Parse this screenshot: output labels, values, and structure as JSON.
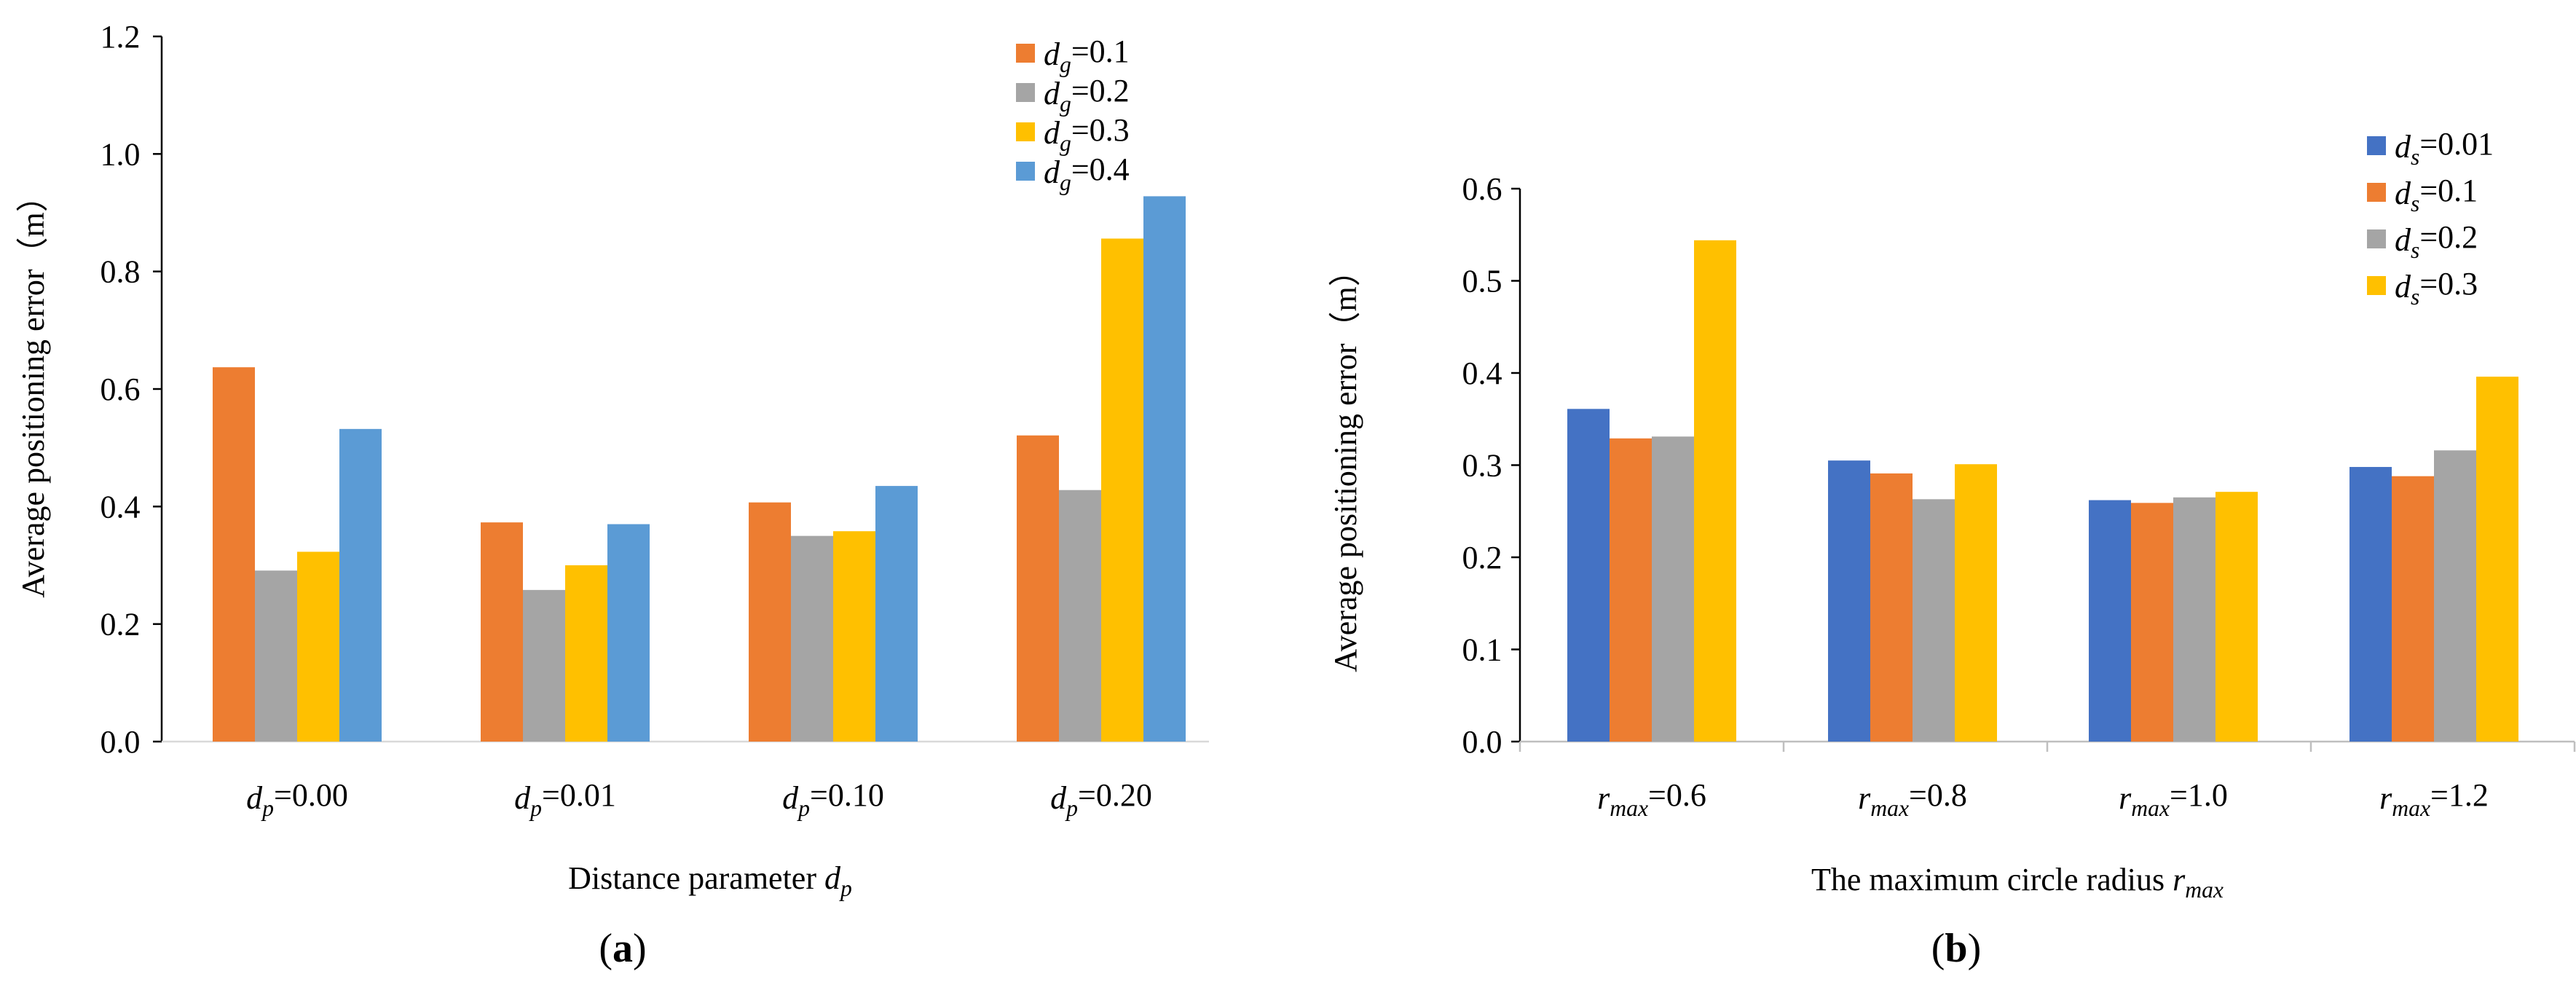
{
  "chart_data": [
    {
      "type": "bar",
      "panel_label": "(a)",
      "ylabel": "Average positioning error（m）",
      "xlabel": {
        "text": "Distance parameter ",
        "var": "d",
        "sub": "p"
      },
      "ylim": [
        0,
        1.2
      ],
      "yticks": [
        "0.0",
        "0.2",
        "0.4",
        "0.6",
        "0.8",
        "1.0",
        "1.2"
      ],
      "grid": false,
      "legend_position": "top-right",
      "categories": [
        {
          "var": "d",
          "sub": "p",
          "val": "=0.00"
        },
        {
          "var": "d",
          "sub": "p",
          "val": "=0.01"
        },
        {
          "var": "d",
          "sub": "p",
          "val": "=0.10"
        },
        {
          "var": "d",
          "sub": "p",
          "val": "=0.20"
        }
      ],
      "series": [
        {
          "name": {
            "var": "d",
            "sub": "g",
            "val": "=0.1"
          },
          "color": "#ED7D31",
          "values": [
            0.637,
            0.373,
            0.407,
            0.521
          ]
        },
        {
          "name": {
            "var": "d",
            "sub": "g",
            "val": "=0.2"
          },
          "color": "#A5A5A5",
          "values": [
            0.291,
            0.258,
            0.35,
            0.428
          ]
        },
        {
          "name": {
            "var": "d",
            "sub": "g",
            "val": "=0.3"
          },
          "color": "#FFC000",
          "values": [
            0.323,
            0.3,
            0.358,
            0.856
          ]
        },
        {
          "name": {
            "var": "d",
            "sub": "g",
            "val": "=0.4"
          },
          "color": "#5B9BD5",
          "values": [
            0.532,
            0.37,
            0.435,
            0.928
          ]
        }
      ]
    },
    {
      "type": "bar",
      "panel_label": "(b)",
      "ylabel": "Average positioning error（m）",
      "xlabel": {
        "text": "The maximum circle radius ",
        "var": "r",
        "sub": "max"
      },
      "ylim": [
        0,
        0.6
      ],
      "yticks": [
        "0.0",
        "0.1",
        "0.2",
        "0.3",
        "0.4",
        "0.5",
        "0.6"
      ],
      "grid": false,
      "legend_position": "top-right",
      "categories": [
        {
          "var": "r",
          "sub": "max",
          "val": "=0.6"
        },
        {
          "var": "r",
          "sub": "max",
          "val": "=0.8"
        },
        {
          "var": "r",
          "sub": "max",
          "val": "=1.0"
        },
        {
          "var": "r",
          "sub": "max",
          "val": "=1.2"
        }
      ],
      "series": [
        {
          "name": {
            "var": "d",
            "sub": "s",
            "val": "=0.01"
          },
          "color": "#4472C4",
          "values": [
            0.361,
            0.305,
            0.262,
            0.298
          ]
        },
        {
          "name": {
            "var": "d",
            "sub": "s",
            "val": "=0.1"
          },
          "color": "#ED7D31",
          "values": [
            0.329,
            0.291,
            0.259,
            0.288
          ]
        },
        {
          "name": {
            "var": "d",
            "sub": "s",
            "val": "=0.2"
          },
          "color": "#A5A5A5",
          "values": [
            0.331,
            0.263,
            0.265,
            0.316
          ]
        },
        {
          "name": {
            "var": "d",
            "sub": "s",
            "val": "=0.3"
          },
          "color": "#FFC000",
          "values": [
            0.544,
            0.301,
            0.271,
            0.396
          ]
        }
      ]
    }
  ]
}
